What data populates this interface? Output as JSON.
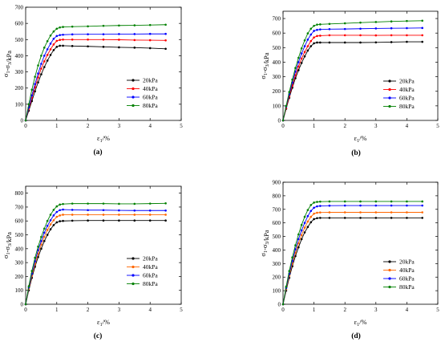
{
  "figure": {
    "panels": [
      "(a)",
      "(b)",
      "(c)",
      "(d)"
    ]
  },
  "chart_data": [
    {
      "type": "line",
      "panel_label": "(a)",
      "xlabel": "ε1/%",
      "ylabel": "σ1-σ3/kPa",
      "xlim": [
        0,
        5
      ],
      "ylim": [
        0,
        700
      ],
      "xticks": [
        "0",
        "1",
        "2",
        "3",
        "4",
        "5"
      ],
      "yticks": [
        "0",
        "100",
        "200",
        "300",
        "400",
        "500",
        "600",
        "700"
      ],
      "grid": false,
      "legend_position": "center-right",
      "x": [
        0,
        0.1,
        0.2,
        0.3,
        0.4,
        0.5,
        0.6,
        0.7,
        0.8,
        0.9,
        1.0,
        1.1,
        1.2,
        1.5,
        2.0,
        2.5,
        3.0,
        3.5,
        4.0,
        4.5
      ],
      "series": [
        {
          "name": "20kPa",
          "color": "#000000",
          "values": [
            0,
            60,
            120,
            180,
            235,
            285,
            330,
            370,
            405,
            435,
            455,
            462,
            462,
            460,
            458,
            455,
            452,
            450,
            447,
            443
          ]
        },
        {
          "name": "40kPa",
          "color": "#ff0000",
          "values": [
            0,
            70,
            140,
            205,
            265,
            320,
            365,
            405,
            440,
            470,
            492,
            498,
            500,
            500,
            500,
            500,
            499,
            497,
            496,
            495
          ]
        },
        {
          "name": "60kPa",
          "color": "#0000ff",
          "values": [
            0,
            80,
            155,
            225,
            290,
            350,
            400,
            440,
            475,
            505,
            522,
            528,
            530,
            532,
            533,
            533,
            534,
            534,
            535,
            535
          ]
        },
        {
          "name": "80kPa",
          "color": "#008000",
          "values": [
            0,
            100,
            190,
            270,
            340,
            400,
            450,
            490,
            525,
            550,
            567,
            575,
            578,
            580,
            582,
            585,
            587,
            588,
            590,
            592
          ]
        }
      ]
    },
    {
      "type": "line",
      "panel_label": "(b)",
      "xlabel": "ε1/%",
      "ylabel": "σ1-σ3/kPa",
      "xlim": [
        0,
        5
      ],
      "ylim": [
        0,
        750
      ],
      "xticks": [
        "0",
        "1",
        "2",
        "3",
        "4",
        "5"
      ],
      "yticks": [
        "0",
        "100",
        "200",
        "300",
        "400",
        "500",
        "600",
        "700"
      ],
      "grid": false,
      "legend_position": "center-right",
      "x": [
        0,
        0.1,
        0.2,
        0.3,
        0.4,
        0.5,
        0.6,
        0.7,
        0.8,
        0.9,
        1.0,
        1.1,
        1.2,
        1.5,
        2.0,
        2.5,
        3.0,
        3.5,
        4.0,
        4.5
      ],
      "series": [
        {
          "name": "20kPa",
          "color": "#000000",
          "values": [
            0,
            80,
            155,
            225,
            290,
            345,
            395,
            440,
            480,
            510,
            530,
            535,
            535,
            535,
            535,
            535,
            536,
            538,
            540,
            540
          ]
        },
        {
          "name": "40kPa",
          "color": "#ff0000",
          "values": [
            0,
            85,
            165,
            240,
            310,
            370,
            425,
            470,
            510,
            545,
            570,
            580,
            582,
            585,
            585,
            585,
            584,
            585,
            585,
            585
          ]
        },
        {
          "name": "60kPa",
          "color": "#0000ff",
          "values": [
            0,
            95,
            180,
            260,
            335,
            400,
            460,
            510,
            555,
            590,
            615,
            622,
            625,
            627,
            628,
            630,
            632,
            633,
            634,
            635
          ]
        },
        {
          "name": "80kPa",
          "color": "#008000",
          "values": [
            0,
            100,
            195,
            280,
            360,
            430,
            495,
            550,
            598,
            630,
            650,
            658,
            660,
            663,
            667,
            672,
            676,
            680,
            683,
            685
          ]
        }
      ]
    },
    {
      "type": "line",
      "panel_label": "(c)",
      "xlabel": "ε1/%",
      "ylabel": "σ1-σ3/kPa",
      "xlim": [
        0,
        5
      ],
      "ylim": [
        0,
        850
      ],
      "xticks": [
        "0",
        "1",
        "2",
        "3",
        "4",
        "5"
      ],
      "yticks": [
        "0",
        "100",
        "200",
        "300",
        "400",
        "500",
        "600",
        "700",
        "800"
      ],
      "grid": false,
      "legend_position": "bottom-right",
      "x": [
        0,
        0.1,
        0.2,
        0.3,
        0.4,
        0.5,
        0.6,
        0.7,
        0.8,
        0.9,
        1.0,
        1.1,
        1.2,
        1.5,
        2.0,
        2.5,
        3.0,
        3.5,
        4.0,
        4.5
      ],
      "series": [
        {
          "name": "20kPa",
          "color": "#000000",
          "values": [
            0,
            100,
            190,
            270,
            340,
            400,
            455,
            500,
            540,
            570,
            590,
            598,
            600,
            602,
            603,
            603,
            603,
            603,
            603,
            603
          ]
        },
        {
          "name": "40kPa",
          "color": "#ff6600",
          "values": [
            0,
            110,
            205,
            290,
            365,
            430,
            485,
            535,
            575,
            605,
            630,
            640,
            645,
            645,
            645,
            645,
            645,
            645,
            645,
            645
          ]
        },
        {
          "name": "60kPa",
          "color": "#0000ff",
          "values": [
            0,
            120,
            220,
            310,
            390,
            455,
            515,
            565,
            605,
            640,
            665,
            678,
            682,
            680,
            678,
            678,
            676,
            675,
            675,
            675
          ]
        },
        {
          "name": "80kPa",
          "color": "#008000",
          "values": [
            0,
            130,
            240,
            335,
            415,
            485,
            545,
            600,
            645,
            680,
            705,
            718,
            722,
            725,
            725,
            725,
            723,
            723,
            725,
            727
          ]
        }
      ]
    },
    {
      "type": "line",
      "panel_label": "(d)",
      "xlabel": "ε1/%",
      "ylabel": "σ1-σ3/kPa",
      "xlim": [
        0,
        5
      ],
      "ylim": [
        0,
        900
      ],
      "xticks": [
        "0",
        "1",
        "2",
        "3",
        "4",
        "5"
      ],
      "yticks": [
        "0",
        "100",
        "200",
        "300",
        "400",
        "500",
        "600",
        "700",
        "800",
        "900"
      ],
      "grid": false,
      "legend_position": "bottom-right",
      "x": [
        0,
        0.1,
        0.2,
        0.3,
        0.4,
        0.5,
        0.6,
        0.7,
        0.8,
        0.9,
        1.0,
        1.1,
        1.2,
        1.5,
        2.0,
        2.5,
        3.0,
        3.5,
        4.0,
        4.5
      ],
      "series": [
        {
          "name": "20kPa",
          "color": "#000000",
          "values": [
            0,
            100,
            195,
            280,
            355,
            420,
            480,
            530,
            570,
            605,
            628,
            635,
            637,
            637,
            637,
            637,
            637,
            637,
            637,
            637
          ]
        },
        {
          "name": "40kPa",
          "color": "#ff6600",
          "values": [
            0,
            110,
            210,
            300,
            380,
            450,
            510,
            565,
            610,
            645,
            668,
            675,
            677,
            678,
            678,
            678,
            678,
            678,
            678,
            678
          ]
        },
        {
          "name": "60kPa",
          "color": "#0000ff",
          "values": [
            0,
            120,
            225,
            320,
            405,
            480,
            545,
            600,
            650,
            688,
            712,
            722,
            725,
            727,
            728,
            728,
            728,
            728,
            728,
            728
          ]
        },
        {
          "name": "80kPa",
          "color": "#008000",
          "values": [
            0,
            130,
            245,
            345,
            435,
            515,
            585,
            645,
            695,
            732,
            750,
            755,
            757,
            758,
            758,
            758,
            758,
            758,
            758,
            758
          ]
        }
      ]
    }
  ]
}
